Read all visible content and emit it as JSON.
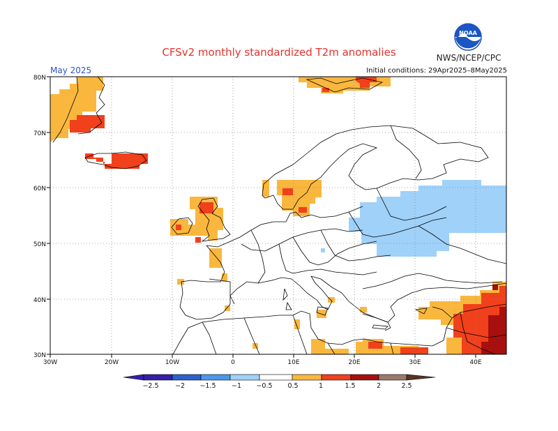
{
  "title": "CFSv2 monthly standardized T2m anomalies",
  "agency": "NWS/NCEP/CPC",
  "logo_text": "NOAA",
  "period": "May 2025",
  "initial_conditions": "Initial conditions: 29Apr2025–8May2025",
  "lat_labels": [
    "80N",
    "70N",
    "60N",
    "50N",
    "40N",
    "30N"
  ],
  "lon_labels": [
    "30W",
    "20W",
    "10W",
    "0",
    "10E",
    "20E",
    "30E",
    "40E"
  ],
  "colorbar": {
    "labels": [
      "−2.5",
      "−2",
      "−1.5",
      "−1",
      "−0.5",
      "0.5",
      "1",
      "1.5",
      "2",
      "2.5"
    ],
    "colors": [
      "#3421a8",
      "#2b63cd",
      "#4a97ec",
      "#9fd1f9",
      "#ffffff",
      "#f9b73e",
      "#f0401c",
      "#a80f0f",
      "#9c7a6a",
      "#5a3326"
    ]
  },
  "chart_data": {
    "type": "heatmap",
    "title": "CFSv2 monthly standardized T2m anomalies",
    "xlim": [
      -30,
      45
    ],
    "ylim": [
      30,
      80
    ],
    "units": "standardized anomaly",
    "categories": [
      {
        "range": [
          0.5,
          1
        ],
        "color": "#f9b73e"
      },
      {
        "range": [
          1,
          1.5
        ],
        "color": "#f0401c"
      },
      {
        "range": [
          1.5,
          2
        ],
        "color": "#a80f0f"
      },
      {
        "range": [
          -1,
          -0.5
        ],
        "color": "#9fd1f9"
      }
    ],
    "regions": [
      {
        "name": "Greenland",
        "lon": [
          -30,
          -20
        ],
        "lat": [
          68,
          80
        ],
        "level": 0.5
      },
      {
        "name": "Greenland east coast",
        "lon": [
          -26,
          -21
        ],
        "lat": [
          70.5,
          72.5
        ],
        "level": 1
      },
      {
        "name": "Iceland",
        "lon": [
          -24,
          -13
        ],
        "lat": [
          63,
          66.5
        ],
        "level": 1
      },
      {
        "name": "Svalbard",
        "lon": [
          10,
          27
        ],
        "lat": [
          77,
          80
        ],
        "level": 0.5
      },
      {
        "name": "Southern Norway/Sweden",
        "lon": [
          5,
          13
        ],
        "lat": [
          55,
          61
        ],
        "level": 0.5
      },
      {
        "name": "British Isles",
        "lon": [
          -10,
          -1
        ],
        "lat": [
          51,
          58
        ],
        "level": 0.5
      },
      {
        "name": "Eastern Europe/Western Russia",
        "lon": [
          20,
          45
        ],
        "lat": [
          48,
          61
        ],
        "level": -0.5
      },
      {
        "name": "Middle East",
        "lon": [
          31,
          45
        ],
        "lat": [
          30,
          43
        ],
        "level": 1
      },
      {
        "name": "Eastern Iraq/Iran border",
        "lon": [
          40,
          45
        ],
        "lat": [
          30,
          36
        ],
        "level": 1.5
      },
      {
        "name": "North Africa coast",
        "lon": [
          10,
          32
        ],
        "lat": [
          30,
          33
        ],
        "level": 0.5
      }
    ]
  }
}
